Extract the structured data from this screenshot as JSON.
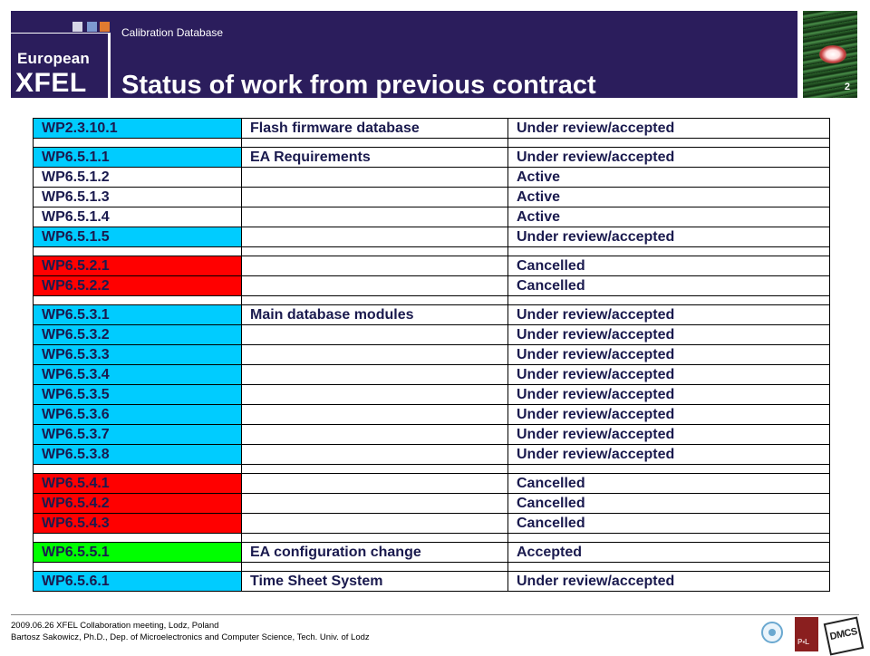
{
  "header": {
    "subtitle": "Calibration Database",
    "title": "Status of work from previous contract",
    "slide_number": "2",
    "logo_top": "European",
    "logo_bottom": "XFEL",
    "colors": {
      "background": "#2b1d5c",
      "logo_squares": [
        "#d6d6e6",
        "#7d9ad0",
        "#e07a30"
      ]
    }
  },
  "table": {
    "rows": [
      {
        "wp": "WP2.3.10.1",
        "name": "Flash firmware database",
        "status": "Under review/accepted",
        "color": "#00ccff"
      },
      {
        "spacer": true
      },
      {
        "wp": "WP6.5.1.1",
        "name": "EA Requirements",
        "status": "Under review/accepted",
        "color": "#00ccff"
      },
      {
        "wp": "WP6.5.1.2",
        "name": "",
        "status": "Active",
        "color": "#ffffff"
      },
      {
        "wp": "WP6.5.1.3",
        "name": "",
        "status": "Active",
        "color": "#ffffff"
      },
      {
        "wp": "WP6.5.1.4",
        "name": "",
        "status": "Active",
        "color": "#ffffff"
      },
      {
        "wp": "WP6.5.1.5",
        "name": "",
        "status": "Under review/accepted",
        "color": "#00ccff"
      },
      {
        "spacer": true
      },
      {
        "wp": "WP6.5.2.1",
        "name": "",
        "status": "Cancelled",
        "color": "#ff0000"
      },
      {
        "wp": "WP6.5.2.2",
        "name": "",
        "status": "Cancelled",
        "color": "#ff0000"
      },
      {
        "spacer": true
      },
      {
        "wp": "WP6.5.3.1",
        "name": "Main database modules",
        "status": "Under review/accepted",
        "color": "#00ccff"
      },
      {
        "wp": "WP6.5.3.2",
        "name": "",
        "status": "Under review/accepted",
        "color": "#00ccff"
      },
      {
        "wp": "WP6.5.3.3",
        "name": "",
        "status": "Under review/accepted",
        "color": "#00ccff"
      },
      {
        "wp": "WP6.5.3.4",
        "name": "",
        "status": "Under review/accepted",
        "color": "#00ccff"
      },
      {
        "wp": "WP6.5.3.5",
        "name": "",
        "status": "Under review/accepted",
        "color": "#00ccff"
      },
      {
        "wp": "WP6.5.3.6",
        "name": "",
        "status": "Under review/accepted",
        "color": "#00ccff"
      },
      {
        "wp": "WP6.5.3.7",
        "name": "",
        "status": "Under review/accepted",
        "color": "#00ccff"
      },
      {
        "wp": "WP6.5.3.8",
        "name": "",
        "status": "Under review/accepted",
        "color": "#00ccff"
      },
      {
        "spacer": true
      },
      {
        "wp": "WP6.5.4.1",
        "name": "",
        "status": "Cancelled",
        "color": "#ff0000"
      },
      {
        "wp": "WP6.5.4.2",
        "name": "",
        "status": "Cancelled",
        "color": "#ff0000"
      },
      {
        "wp": "WP6.5.4.3",
        "name": "",
        "status": "Cancelled",
        "color": "#ff0000"
      },
      {
        "spacer": true
      },
      {
        "wp": "WP6.5.5.1",
        "name": "EA configuration change",
        "status": "Accepted",
        "color": "#00ff00"
      },
      {
        "spacer": true
      },
      {
        "wp": "WP6.5.6.1",
        "name": "Time Sheet System",
        "status": "Under review/accepted",
        "color": "#00ccff"
      }
    ]
  },
  "footer": {
    "line1": "2009.06.26 XFEL Collaboration meeting, Lodz, Poland",
    "line2": "Bartosz Sakowicz, Ph.D., Dep. of Microelectronics and Computer Science, Tech. Univ. of Lodz",
    "logos": [
      "desy-logo",
      "pl-logo",
      "dmcs-logo"
    ],
    "pl_logo_text": "P▪L",
    "dmcs_logo_text": "DMCS"
  }
}
